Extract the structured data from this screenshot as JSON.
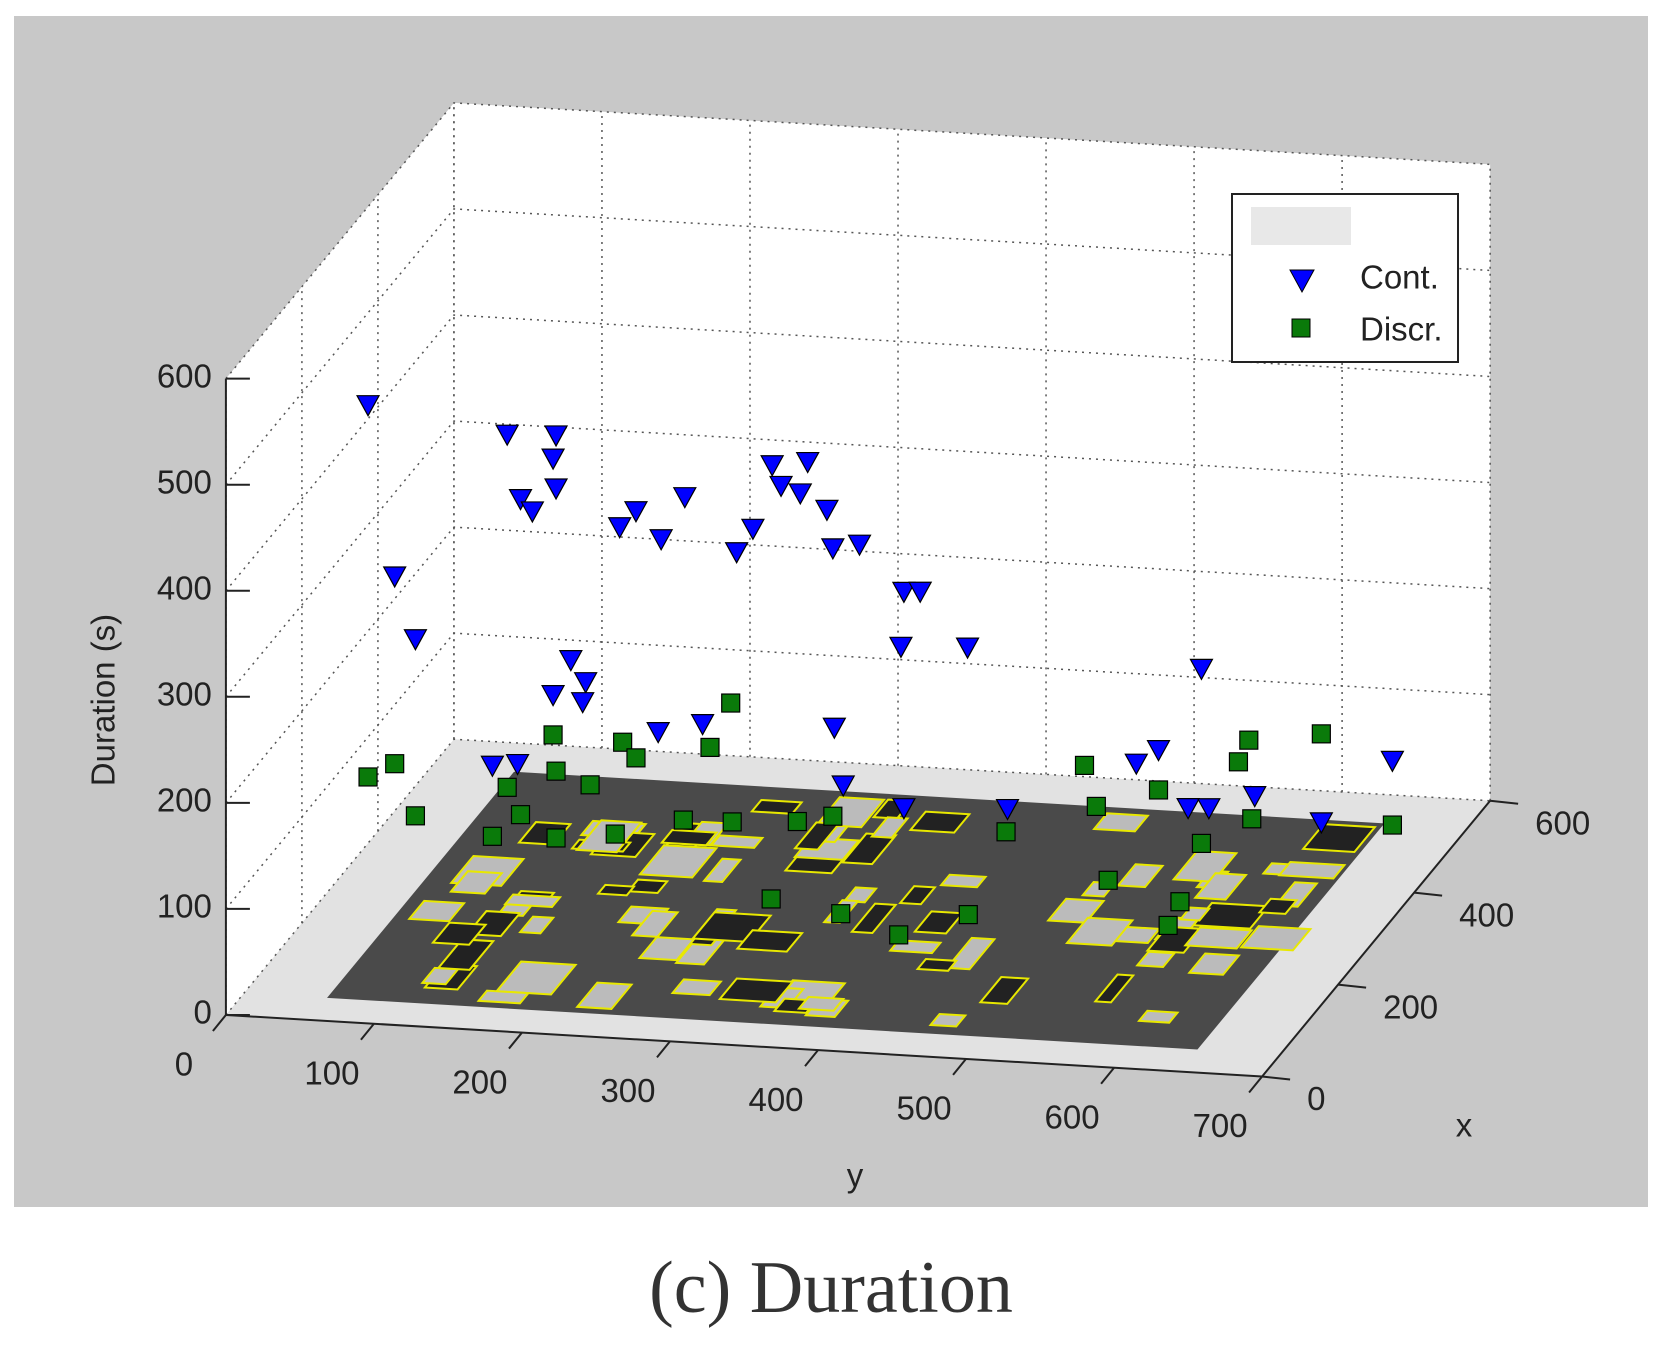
{
  "chart_data": {
    "type": "scatter3d",
    "caption": "(c) Duration",
    "xlabel": "y",
    "depthlabel": "x",
    "ylabel": "Duration (s)",
    "ylim_front": [
      0,
      700
    ],
    "yticks_front": [
      0,
      100,
      200,
      300,
      400,
      500,
      600,
      700
    ],
    "xlim": [
      0,
      600
    ],
    "xticks": [
      0,
      200,
      400,
      600
    ],
    "zlim": [
      0,
      600
    ],
    "zticks": [
      0,
      100,
      200,
      300,
      400,
      500,
      600
    ],
    "grid": true,
    "legend": "upper right",
    "series": [
      {
        "name": "Cont.",
        "color": "#0000ff",
        "marker": "triangle-down",
        "y": [
          19,
          37,
          51,
          113,
          146,
          144,
          122,
          130,
          146,
          189,
          200,
          217,
          233,
          268,
          279,
          292,
          316,
          298,
          311,
          329,
          333,
          351,
          381,
          392,
          379,
          424,
          156,
          166,
          144,
          164,
          334,
          582,
          711,
          215,
          245,
          103,
          120,
          340,
          381,
          538,
          553,
          618,
          663,
          451,
          573,
          587
        ],
        "x": [
          300,
          300,
          300,
          300,
          300,
          300,
          300,
          300,
          300,
          300,
          300,
          300,
          300,
          300,
          300,
          300,
          300,
          300,
          300,
          300,
          300,
          300,
          300,
          300,
          300,
          300,
          300,
          300,
          300,
          300,
          300,
          300,
          300,
          300,
          300,
          300,
          300,
          300,
          300,
          300,
          300,
          300,
          300,
          300,
          300,
          300
        ],
        "values": [
          447,
          287,
          229,
          427,
          429,
          407,
          367,
          356,
          379,
          346,
          362,
          337,
          378,
          329,
          352,
          413,
          418,
          394,
          388,
          374,
          338,
          343,
          301,
          302,
          249,
          252,
          218,
          198,
          184,
          179,
          169,
          245,
          169,
          155,
          165,
          114,
          117,
          115,
          97,
          152,
          166,
          128,
          107,
          102,
          113,
          114
        ]
      },
      {
        "name": "Discr.",
        "color": "#0a7a0a",
        "marker": "square",
        "y": [
          264,
          144,
          191,
          663,
          614,
          607,
          19,
          37,
          51,
          113,
          122,
          146,
          169,
          200,
          250,
          503,
          511,
          553,
          711,
          616,
          103,
          146,
          186,
          232,
          265,
          309,
          333,
          450,
          582,
          519,
          416,
          463,
          606,
          598,
          317,
          364
        ],
        "x": [
          300,
          300,
          300,
          300,
          300,
          300,
          300,
          300,
          300,
          300,
          300,
          300,
          300,
          300,
          300,
          300,
          300,
          300,
          300,
          300,
          300,
          300,
          300,
          300,
          300,
          300,
          300,
          300,
          300,
          300,
          150,
          150,
          150,
          150,
          200,
          200
        ],
        "values": [
          186,
          146,
          143,
          190,
          180,
          159,
          96,
          110,
          62,
          94,
          69,
          112,
          101,
          129,
          143,
          147,
          109,
          128,
          108,
          106,
          47,
          49,
          56,
          73,
          74,
          78,
          85,
          80,
          80,
          40,
          45,
          68,
          92,
          69,
          49,
          39
        ]
      }
    ]
  }
}
